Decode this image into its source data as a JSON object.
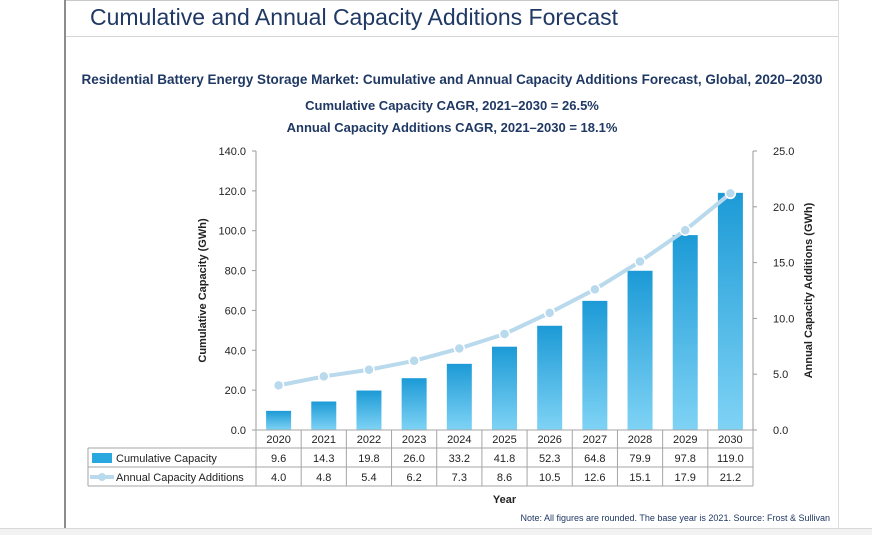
{
  "page": {
    "heading": "Cumulative and Annual Capacity Additions Forecast",
    "subtitle": "Residential Battery Energy Storage Market: Cumulative and Annual Capacity Additions Forecast, Global, 2020–2030",
    "cagr_cumulative": "Cumulative Capacity CAGR, 2021–2030 = 26.5%",
    "cagr_annual": "Annual Capacity Additions CAGR, 2021–2030 = 18.1%",
    "note": "Note: All figures are rounded. The base year is 2021. Source: Frost & Sullivan"
  },
  "chart_data": {
    "type": "bar",
    "categories": [
      "2020",
      "2021",
      "2022",
      "2023",
      "2024",
      "2025",
      "2026",
      "2027",
      "2028",
      "2029",
      "2030"
    ],
    "series": [
      {
        "name": "Cumulative Capacity",
        "type": "bar",
        "axis": "left",
        "values": [
          9.6,
          14.3,
          19.8,
          26.0,
          33.2,
          41.8,
          52.3,
          64.8,
          79.9,
          97.8,
          119.0
        ],
        "labels": [
          "9.6",
          "14.3",
          "19.8",
          "26.0",
          "33.2",
          "41.8",
          "52.3",
          "64.8",
          "79.9",
          "97.8",
          "119.0"
        ],
        "color": "#29a8e0"
      },
      {
        "name": "Annual Capacity Additions",
        "type": "line",
        "axis": "right",
        "values": [
          4.0,
          4.8,
          5.4,
          6.2,
          7.3,
          8.6,
          10.5,
          12.6,
          15.1,
          17.9,
          21.2
        ],
        "labels": [
          "4.0",
          "4.8",
          "5.4",
          "6.2",
          "7.3",
          "8.6",
          "10.5",
          "12.6",
          "15.1",
          "17.9",
          "21.2"
        ],
        "color": "#b9d9ec"
      }
    ],
    "xlabel": "Year",
    "ylabel_left": "Cumulative Capacity (GWh)",
    "ylabel_right": "Annual Capacity Additions (GWh)",
    "ylim_left": [
      0,
      140
    ],
    "ylim_right": [
      0,
      25
    ],
    "yticks_left": [
      "0.0",
      "20.0",
      "40.0",
      "60.0",
      "80.0",
      "100.0",
      "120.0",
      "140.0"
    ],
    "yticks_right": [
      "0.0",
      "5.0",
      "10.0",
      "15.0",
      "20.0",
      "25.0"
    ],
    "grid": false,
    "legend": "data-table"
  }
}
